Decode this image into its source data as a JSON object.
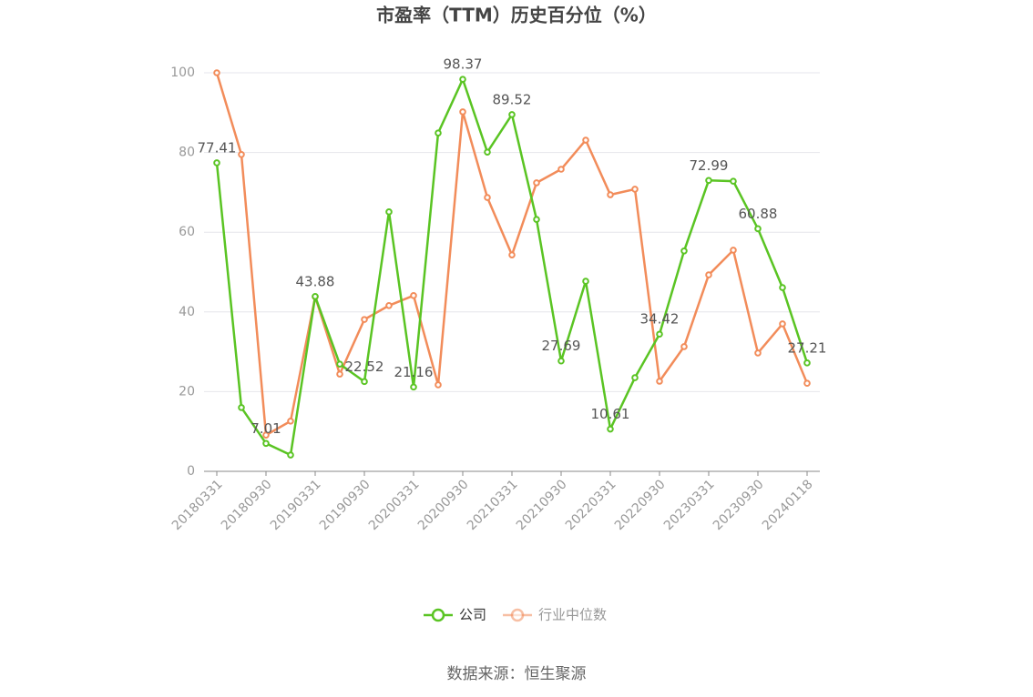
{
  "chart_data": {
    "type": "line",
    "title": "市盈率（TTM）历史百分位（%）",
    "source": "数据来源：恒生聚源",
    "categories": [
      "20180331",
      null,
      "20180930",
      null,
      "20190331",
      null,
      "20190930",
      null,
      "20200331",
      null,
      "20200930",
      null,
      "20210331",
      null,
      "20210930",
      null,
      "20220331",
      null,
      "20220930",
      null,
      "20230331",
      null,
      "20230930",
      null,
      "20240118"
    ],
    "series": [
      {
        "name": "公司",
        "color": "#5ac423",
        "values": [
          77.41,
          16.0,
          7.01,
          4.1,
          43.88,
          26.9,
          22.52,
          65.1,
          21.16,
          84.9,
          98.37,
          80.1,
          89.52,
          63.2,
          27.69,
          47.7,
          10.61,
          23.5,
          34.42,
          55.3,
          72.99,
          72.8,
          60.88,
          46.1,
          27.21
        ],
        "value_labels": [
          "77.41",
          null,
          "7.01",
          null,
          "43.88",
          null,
          "22.52",
          null,
          "21.16",
          null,
          "98.37",
          null,
          "89.52",
          null,
          "27.69",
          null,
          "10.61",
          null,
          "34.42",
          null,
          "72.99",
          null,
          "60.88",
          null,
          "27.21"
        ]
      },
      {
        "name": "行业中位数",
        "color": "#f28c5a",
        "values": [
          100,
          79.5,
          9.1,
          12.6,
          43.8,
          24.4,
          38.1,
          41.6,
          44.1,
          21.7,
          90.2,
          68.7,
          54.3,
          72.4,
          75.8,
          83.1,
          69.4,
          70.8,
          22.6,
          31.3,
          49.3,
          55.5,
          29.7,
          37.0,
          22.1
        ]
      }
    ],
    "ylim": [
      0,
      100
    ],
    "yticks": [
      0,
      20,
      40,
      60,
      80,
      100
    ],
    "grid": true,
    "legend": "bottom"
  }
}
